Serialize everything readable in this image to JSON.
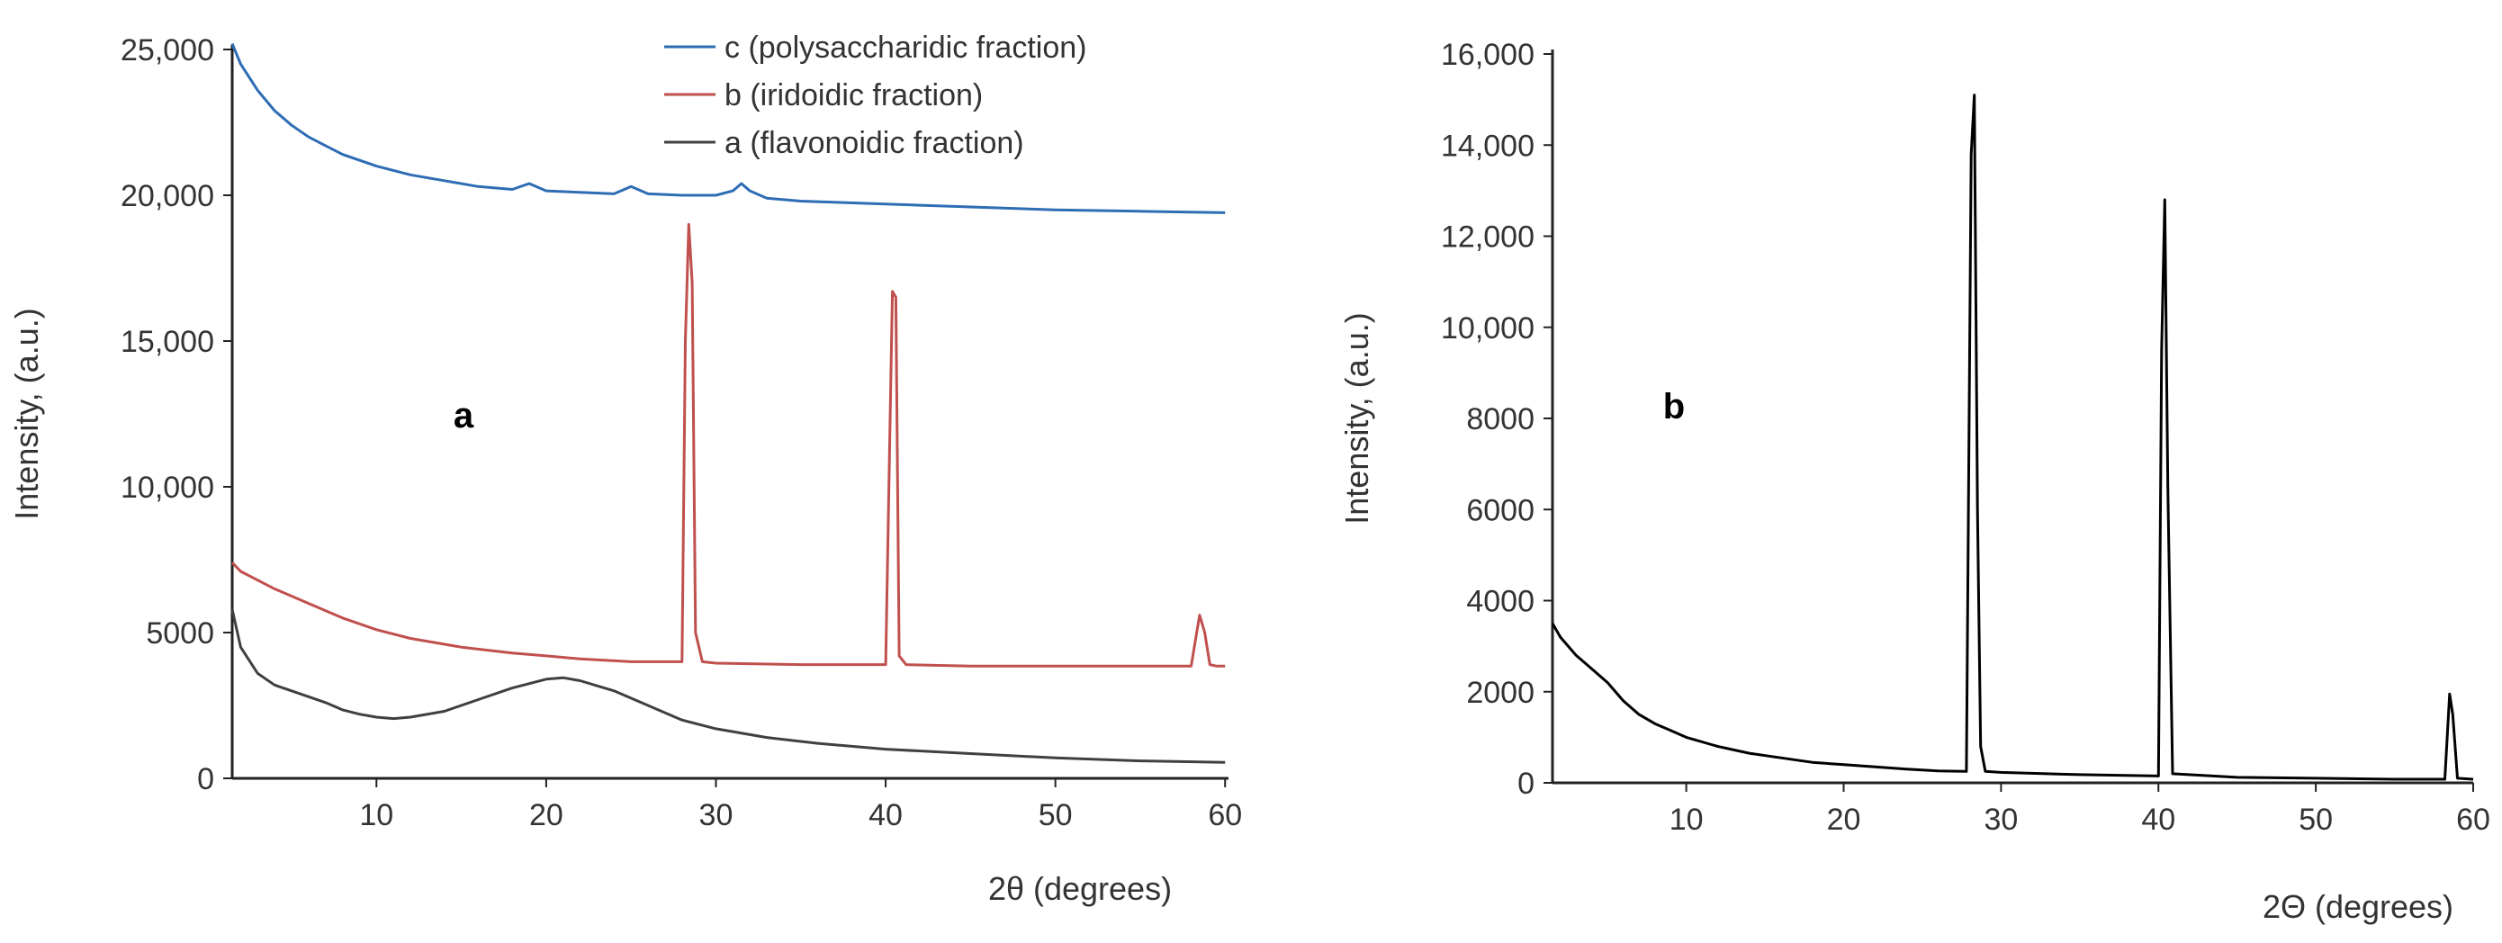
{
  "figure": {
    "panels": [
      "a",
      "b"
    ]
  },
  "chart_data": [
    {
      "type": "line",
      "panel_label": "a",
      "xlabel": "2θ  (degrees)",
      "ylabel": "Intensity, (a.u.)",
      "xlim": [
        1.5,
        60.2
      ],
      "ylim": [
        0,
        25000
      ],
      "xticks": [
        10,
        20,
        30,
        40,
        50,
        60
      ],
      "xtick_labels": [
        "10",
        "20",
        "30",
        "40",
        "50",
        "60"
      ],
      "yticks": [
        0,
        5000,
        10000,
        15000,
        20000,
        25000
      ],
      "ytick_labels": [
        "0",
        "5000",
        "10,000",
        "15,000",
        "20,000",
        "25,000"
      ],
      "grid": false,
      "legend_position": "top-center",
      "series": [
        {
          "name": "c (polysaccharidic fraction)",
          "color": "#2e6db4",
          "x": [
            1.5,
            2,
            3,
            4,
            5,
            6,
            7,
            8,
            10,
            12,
            14,
            16,
            18,
            19,
            20,
            22,
            24,
            25,
            26,
            28,
            30,
            31,
            31.5,
            32,
            33,
            35,
            40,
            45,
            50,
            55,
            60
          ],
          "y": [
            25200,
            24500,
            23600,
            22900,
            22400,
            22000,
            21700,
            21400,
            21000,
            20700,
            20500,
            20300,
            20200,
            20400,
            20150,
            20100,
            20050,
            20300,
            20050,
            20000,
            20000,
            20150,
            20400,
            20150,
            19900,
            19800,
            19700,
            19600,
            19500,
            19450,
            19400
          ]
        },
        {
          "name": "b (iridoidic fraction)",
          "color": "#c0504d",
          "x": [
            1.5,
            2,
            4,
            6,
            8,
            10,
            12,
            15,
            18,
            20,
            22,
            25,
            27,
            28.0,
            28.2,
            28.4,
            28.6,
            28.8,
            29.2,
            30,
            35,
            40,
            40.4,
            40.6,
            40.8,
            41.2,
            45,
            50,
            55,
            58,
            58.5,
            58.8,
            59.1,
            59.5,
            60
          ],
          "y": [
            7400,
            7100,
            6500,
            6000,
            5500,
            5100,
            4800,
            4500,
            4300,
            4200,
            4100,
            4000,
            4000,
            4000,
            15000,
            19000,
            17000,
            5000,
            4000,
            3950,
            3900,
            3900,
            16700,
            16500,
            4200,
            3900,
            3850,
            3850,
            3850,
            3850,
            5600,
            5000,
            3900,
            3850,
            3850
          ]
        },
        {
          "name": "a (flavonoidic fraction)",
          "color": "#404040",
          "x": [
            1.5,
            2,
            3,
            4,
            5,
            6,
            7,
            8,
            9,
            10,
            11,
            12,
            14,
            16,
            18,
            20,
            21,
            22,
            24,
            26,
            28,
            30,
            33,
            36,
            40,
            45,
            50,
            55,
            60
          ],
          "y": [
            5800,
            4500,
            3600,
            3200,
            3000,
            2800,
            2600,
            2350,
            2200,
            2100,
            2050,
            2100,
            2300,
            2700,
            3100,
            3400,
            3450,
            3350,
            3000,
            2500,
            2000,
            1700,
            1400,
            1200,
            1000,
            850,
            700,
            600,
            550
          ]
        }
      ]
    },
    {
      "type": "line",
      "panel_label": "b",
      "xlabel": "2Θ  (degrees)",
      "ylabel": "Intensity, (a.u.)",
      "xlim": [
        1.5,
        60
      ],
      "ylim": [
        0,
        16000
      ],
      "xticks": [
        10,
        20,
        30,
        40,
        50,
        60
      ],
      "xtick_labels": [
        "10",
        "20",
        "30",
        "40",
        "50",
        "60"
      ],
      "yticks": [
        0,
        2000,
        4000,
        6000,
        8000,
        10000,
        12000,
        14000,
        16000
      ],
      "ytick_labels": [
        "0",
        "2000",
        "4000",
        "6000",
        "8000",
        "10,000",
        "12,000",
        "14,000",
        "16,000"
      ],
      "grid": false,
      "series": [
        {
          "color": "#000000",
          "x": [
            1.5,
            2,
            3,
            4,
            5,
            6,
            7,
            8,
            9,
            10,
            12,
            14,
            16,
            18,
            20,
            22,
            24,
            26,
            27.8,
            28.1,
            28.3,
            28.5,
            28.7,
            29.0,
            30,
            35,
            40.0,
            40.2,
            40.4,
            40.6,
            40.9,
            45,
            50,
            55,
            58.2,
            58.5,
            58.7,
            59.0,
            60
          ],
          "y": [
            3500,
            3200,
            2800,
            2500,
            2200,
            1800,
            1500,
            1300,
            1150,
            1000,
            800,
            650,
            550,
            450,
            400,
            350,
            300,
            260,
            250,
            13800,
            15100,
            6000,
            800,
            250,
            230,
            180,
            150,
            9500,
            12800,
            6500,
            200,
            120,
            100,
            80,
            80,
            1950,
            1500,
            100,
            80
          ]
        }
      ]
    }
  ]
}
